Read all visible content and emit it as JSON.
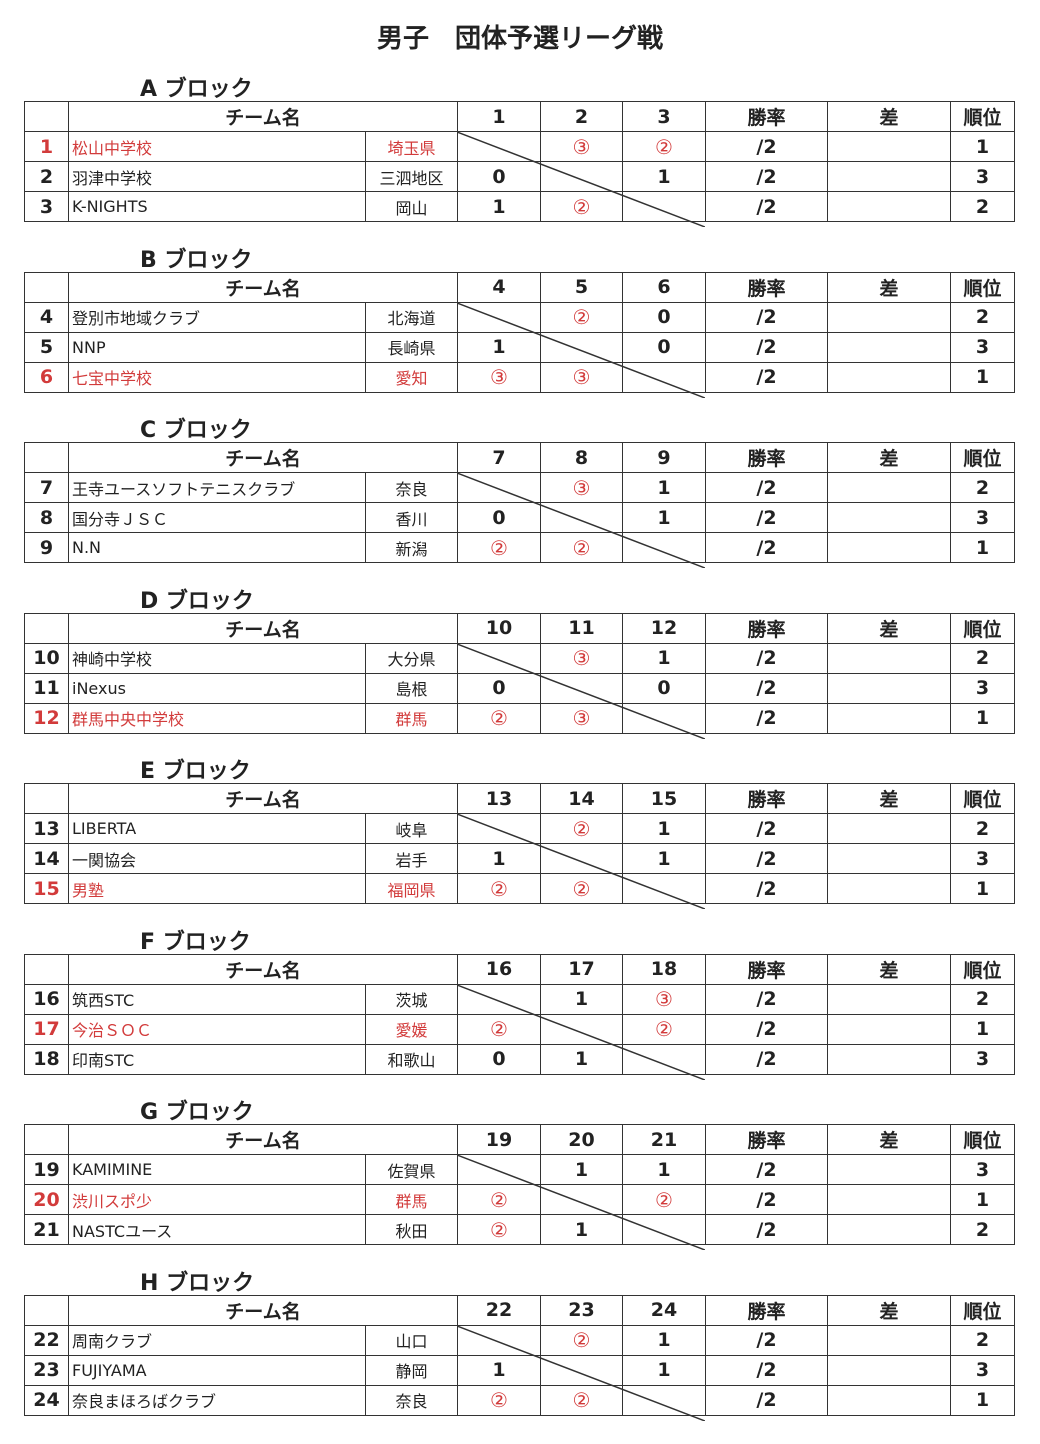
{
  "title": "男子　団体予選リーグ戦",
  "headers": {
    "team": "チーム名",
    "rate": "勝率",
    "diff": "差",
    "rank": "順位"
  },
  "colors": {
    "winner": "#d23b3b",
    "text": "#222222"
  },
  "blocks": [
    {
      "label": "A ブロック",
      "cols": [
        "1",
        "2",
        "3"
      ],
      "rows": [
        {
          "no": "1",
          "team": "松山中学校",
          "pref": "埼玉県",
          "res": [
            null,
            "③",
            "②"
          ],
          "rate": "/2",
          "rank": "1",
          "hl": true
        },
        {
          "no": "2",
          "team": "羽津中学校",
          "pref": "三泗地区",
          "res": [
            "0",
            null,
            "1"
          ],
          "rate": "/2",
          "rank": "3"
        },
        {
          "no": "3",
          "team": "K-NIGHTS",
          "pref": "岡山",
          "res": [
            "1",
            "②",
            null
          ],
          "rate": "/2",
          "rank": "2"
        }
      ]
    },
    {
      "label": "B ブロック",
      "cols": [
        "4",
        "5",
        "6"
      ],
      "rows": [
        {
          "no": "4",
          "team": "登別市地域クラブ",
          "pref": "北海道",
          "res": [
            null,
            "②",
            "0"
          ],
          "rate": "/2",
          "rank": "2"
        },
        {
          "no": "5",
          "team": "NNP",
          "pref": "長崎県",
          "res": [
            "1",
            null,
            "0"
          ],
          "rate": "/2",
          "rank": "3"
        },
        {
          "no": "6",
          "team": "七宝中学校",
          "pref": "愛知",
          "res": [
            "③",
            "③",
            null
          ],
          "rate": "/2",
          "rank": "1",
          "hl": true
        }
      ]
    },
    {
      "label": "C ブロック",
      "cols": [
        "7",
        "8",
        "9"
      ],
      "rows": [
        {
          "no": "7",
          "team": "王寺ユースソフトテニスクラブ",
          "pref": "奈良",
          "res": [
            null,
            "③",
            "1"
          ],
          "rate": "/2",
          "rank": "2"
        },
        {
          "no": "8",
          "team": "国分寺ＪＳＣ",
          "pref": "香川",
          "res": [
            "0",
            null,
            "1"
          ],
          "rate": "/2",
          "rank": "3"
        },
        {
          "no": "9",
          "team": "N.N",
          "pref": "新潟",
          "res": [
            "②",
            "②",
            null
          ],
          "rate": "/2",
          "rank": "1"
        }
      ]
    },
    {
      "label": "D ブロック",
      "cols": [
        "10",
        "11",
        "12"
      ],
      "rows": [
        {
          "no": "10",
          "team": "神崎中学校",
          "pref": "大分県",
          "res": [
            null,
            "③",
            "1"
          ],
          "rate": "/2",
          "rank": "2"
        },
        {
          "no": "11",
          "team": "iNexus",
          "pref": "島根",
          "res": [
            "0",
            null,
            "0"
          ],
          "rate": "/2",
          "rank": "3"
        },
        {
          "no": "12",
          "team": "群馬中央中学校",
          "pref": "群馬",
          "res": [
            "②",
            "③",
            null
          ],
          "rate": "/2",
          "rank": "1",
          "hl": true
        }
      ]
    },
    {
      "label": "E ブロック",
      "cols": [
        "13",
        "14",
        "15"
      ],
      "rows": [
        {
          "no": "13",
          "team": "LIBERTA",
          "pref": "岐阜",
          "res": [
            null,
            "②",
            "1"
          ],
          "rate": "/2",
          "rank": "2"
        },
        {
          "no": "14",
          "team": "一関協会",
          "pref": "岩手",
          "res": [
            "1",
            null,
            "1"
          ],
          "rate": "/2",
          "rank": "3"
        },
        {
          "no": "15",
          "team": "男塾",
          "pref": "福岡県",
          "res": [
            "②",
            "②",
            null
          ],
          "rate": "/2",
          "rank": "1",
          "hl": true
        }
      ]
    },
    {
      "label": "F ブロック",
      "cols": [
        "16",
        "17",
        "18"
      ],
      "rows": [
        {
          "no": "16",
          "team": "筑西STC",
          "pref": "茨城",
          "res": [
            null,
            "1",
            "③"
          ],
          "rate": "/2",
          "rank": "2"
        },
        {
          "no": "17",
          "team": "今治ＳＯＣ",
          "pref": "愛媛",
          "res": [
            "②",
            null,
            "②"
          ],
          "rate": "/2",
          "rank": "1",
          "hl": true
        },
        {
          "no": "18",
          "team": "印南STC",
          "pref": "和歌山",
          "res": [
            "0",
            "1",
            null
          ],
          "rate": "/2",
          "rank": "3"
        }
      ]
    },
    {
      "label": "G ブロック",
      "cols": [
        "19",
        "20",
        "21"
      ],
      "rows": [
        {
          "no": "19",
          "team": "KAMIMINE",
          "pref": "佐賀県",
          "res": [
            null,
            "1",
            "1"
          ],
          "rate": "/2",
          "rank": "3"
        },
        {
          "no": "20",
          "team": "渋川スポ少",
          "pref": "群馬",
          "res": [
            "②",
            null,
            "②"
          ],
          "rate": "/2",
          "rank": "1",
          "hl": true
        },
        {
          "no": "21",
          "team": "NASTCユース",
          "pref": "秋田",
          "res": [
            "②",
            "1",
            null
          ],
          "rate": "/2",
          "rank": "2"
        }
      ]
    },
    {
      "label": "H ブロック",
      "cols": [
        "22",
        "23",
        "24"
      ],
      "rows": [
        {
          "no": "22",
          "team": "周南クラブ",
          "pref": "山口",
          "res": [
            null,
            "②",
            "1"
          ],
          "rate": "/2",
          "rank": "2"
        },
        {
          "no": "23",
          "team": "FUJIYAMA",
          "pref": "静岡",
          "res": [
            "1",
            null,
            "1"
          ],
          "rate": "/2",
          "rank": "3"
        },
        {
          "no": "24",
          "team": "奈良まほろばクラブ",
          "pref": "奈良",
          "res": [
            "②",
            "②",
            null
          ],
          "rate": "/2",
          "rank": "1"
        }
      ]
    }
  ]
}
